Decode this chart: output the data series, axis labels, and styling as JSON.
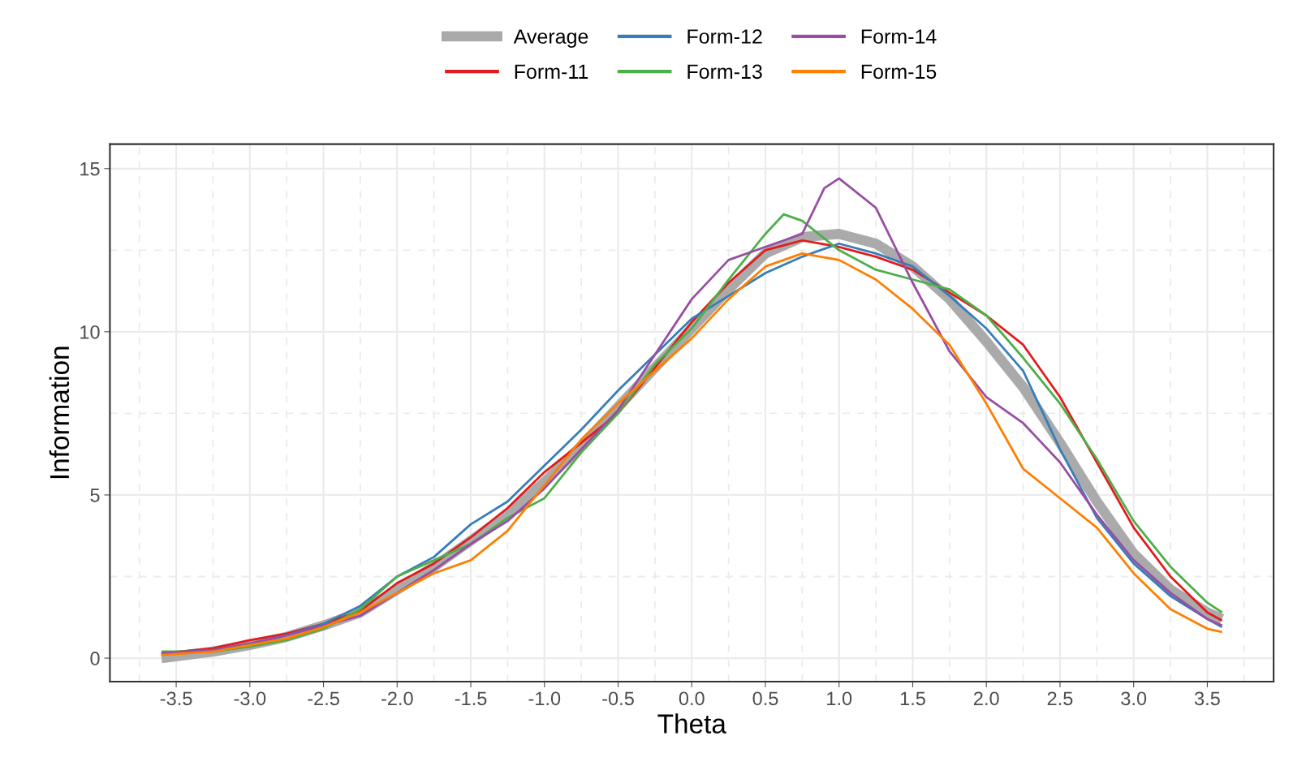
{
  "chart_data": {
    "type": "line",
    "xlabel": "Theta",
    "ylabel": "Information",
    "xlim": [
      -3.95,
      3.95
    ],
    "xticks": [
      {
        "value": -3.5,
        "label": "-3.5"
      },
      {
        "value": -3.0,
        "label": "-3.0"
      },
      {
        "value": -2.5,
        "label": "-2.5"
      },
      {
        "value": -2.0,
        "label": "-2.0"
      },
      {
        "value": -1.5,
        "label": "-1.5"
      },
      {
        "value": -1.0,
        "label": "-1.0"
      },
      {
        "value": -0.5,
        "label": "-0.5"
      },
      {
        "value": 0.0,
        "label": "0.0"
      },
      {
        "value": 0.5,
        "label": "0.5"
      },
      {
        "value": 1.0,
        "label": "1.0"
      },
      {
        "value": 1.5,
        "label": "1.5"
      },
      {
        "value": 2.0,
        "label": "2.0"
      },
      {
        "value": 2.5,
        "label": "2.5"
      },
      {
        "value": 3.0,
        "label": "3.0"
      },
      {
        "value": 3.5,
        "label": "3.5"
      }
    ],
    "ylim": [
      -0.72,
      15.75
    ],
    "yticks": [
      0,
      5,
      10,
      15
    ],
    "grid": true,
    "legend": "top",
    "marker": "none",
    "line_style": "solid",
    "x": [
      -3.6,
      -3.25,
      -3.0,
      -2.75,
      -2.5,
      -2.25,
      -2.0,
      -1.75,
      -1.5,
      -1.25,
      -1.0,
      -0.75,
      -0.5,
      -0.25,
      0.0,
      0.25,
      0.5,
      0.75,
      1.0,
      1.25,
      1.5,
      1.75,
      2.0,
      2.25,
      2.5,
      2.75,
      3.0,
      3.25,
      3.5,
      3.6
    ],
    "series": [
      {
        "name": "Average",
        "color": "#aaaaaa",
        "values": [
          0.0,
          0.2,
          0.4,
          0.65,
          1.0,
          1.4,
          2.1,
          2.8,
          3.6,
          4.4,
          5.4,
          6.5,
          7.7,
          8.9,
          10.1,
          11.3,
          12.4,
          12.9,
          13.0,
          12.7,
          12.0,
          11.0,
          9.7,
          8.3,
          6.6,
          4.8,
          3.2,
          2.1,
          1.4,
          1.2
        ]
      },
      {
        "name": "Form-11",
        "color": "#e41a1c",
        "values": [
          0.15,
          0.3,
          0.55,
          0.75,
          1.05,
          1.45,
          2.3,
          2.9,
          3.7,
          4.6,
          5.7,
          6.6,
          7.5,
          8.9,
          10.3,
          11.5,
          12.5,
          12.8,
          12.6,
          12.3,
          11.9,
          11.2,
          10.5,
          9.6,
          8.0,
          6.0,
          4.0,
          2.5,
          1.4,
          1.15
        ]
      },
      {
        "name": "Form-12",
        "color": "#377eb8",
        "values": [
          null,
          null,
          0.4,
          0.7,
          1.05,
          1.6,
          2.5,
          3.1,
          4.1,
          4.8,
          5.9,
          7.0,
          8.2,
          9.3,
          10.4,
          11.1,
          11.8,
          12.3,
          12.7,
          12.4,
          12.0,
          11.1,
          10.1,
          8.8,
          6.4,
          4.3,
          2.9,
          1.9,
          1.2,
          0.95
        ]
      },
      {
        "name": "Form-13",
        "color": "#4daf4a",
        "x": [
          -3.6,
          -3.25,
          -3.0,
          -2.75,
          -2.5,
          -2.25,
          -2.0,
          -1.75,
          -1.5,
          -1.25,
          -1.0,
          -0.75,
          -0.5,
          -0.25,
          0.0,
          0.25,
          0.5,
          0.625,
          0.75,
          1.0,
          1.25,
          1.5,
          1.75,
          2.0,
          2.25,
          2.5,
          2.75,
          3.0,
          3.25,
          3.5,
          3.6
        ],
        "values": [
          0.2,
          0.2,
          0.35,
          0.55,
          0.9,
          1.5,
          2.5,
          3.0,
          3.5,
          4.3,
          4.9,
          6.3,
          7.5,
          9.0,
          10.1,
          11.6,
          13.0,
          13.6,
          13.4,
          12.5,
          11.9,
          11.6,
          11.3,
          10.5,
          9.2,
          7.8,
          6.1,
          4.2,
          2.8,
          1.7,
          1.4
        ]
      },
      {
        "name": "Form-14",
        "color": "#984ea3",
        "x": [
          -3.6,
          -3.25,
          -3.0,
          -2.75,
          -2.5,
          -2.25,
          -2.0,
          -1.75,
          -1.5,
          -1.25,
          -1.0,
          -0.75,
          -0.5,
          -0.25,
          0.0,
          0.25,
          0.5,
          0.75,
          0.9,
          1.0,
          1.25,
          1.5,
          1.75,
          2.0,
          2.25,
          2.5,
          2.75,
          3.0,
          3.25,
          3.5,
          3.6
        ],
        "values": [
          0.15,
          0.25,
          0.45,
          0.7,
          1.0,
          1.3,
          2.0,
          2.7,
          3.5,
          4.2,
          5.2,
          6.4,
          7.6,
          9.3,
          11.0,
          12.2,
          12.6,
          13.0,
          14.4,
          14.7,
          13.8,
          11.5,
          9.4,
          8.0,
          7.2,
          6.0,
          4.4,
          3.0,
          2.0,
          1.2,
          1.0
        ]
      },
      {
        "name": "Form-15",
        "color": "#ff7f00",
        "values": [
          0.1,
          0.2,
          0.4,
          0.6,
          0.95,
          1.4,
          2.0,
          2.6,
          3.0,
          3.9,
          5.3,
          6.7,
          7.8,
          8.8,
          9.8,
          11.0,
          12.0,
          12.4,
          12.2,
          11.6,
          10.7,
          9.6,
          7.8,
          5.8,
          4.9,
          4.0,
          2.6,
          1.5,
          0.9,
          0.8
        ]
      }
    ]
  }
}
